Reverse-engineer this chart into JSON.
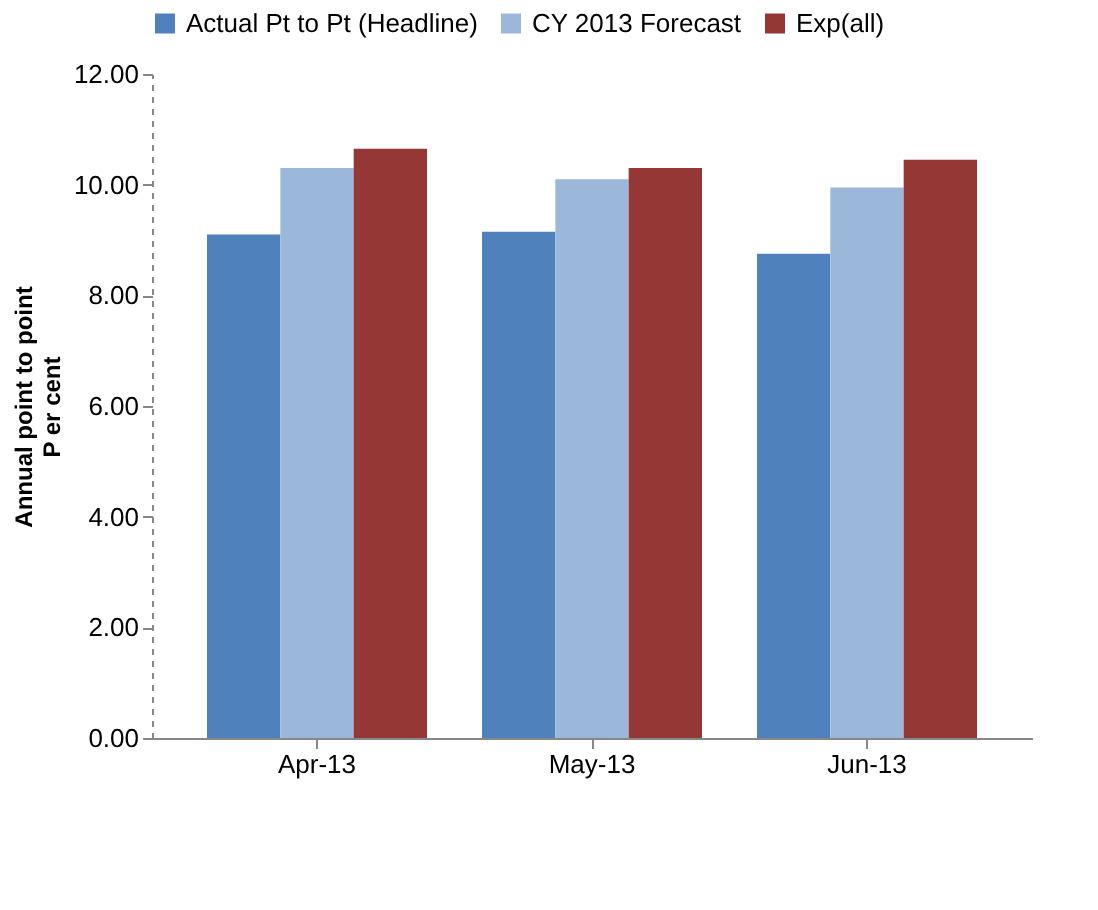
{
  "chart_data": {
    "type": "bar",
    "categories": [
      "Apr-13",
      "May-13",
      "Jun-13"
    ],
    "series": [
      {
        "name": "Actual Pt to Pt (Headline)",
        "color": "#4f81bd",
        "values": [
          9.1,
          9.15,
          8.75
        ]
      },
      {
        "name": "CY 2013 Forecast",
        "color": "#9bb7d9",
        "values": [
          10.3,
          10.1,
          9.95
        ]
      },
      {
        "name": "Exp(all)",
        "color": "#953735",
        "values": [
          10.65,
          10.3,
          10.45
        ]
      }
    ],
    "ylabel": "Annual point to point\nP er cent",
    "ylim": [
      0,
      12
    ],
    "yticks": [
      {
        "value": 0,
        "label": "0.00"
      },
      {
        "value": 2,
        "label": "2.00"
      },
      {
        "value": 4,
        "label": "4.00"
      },
      {
        "value": 6,
        "label": "6.00"
      },
      {
        "value": 8,
        "label": "8.00"
      },
      {
        "value": 10,
        "label": "10.00"
      },
      {
        "value": 12,
        "label": "12.00"
      }
    ],
    "grid": false,
    "legend": "top"
  }
}
